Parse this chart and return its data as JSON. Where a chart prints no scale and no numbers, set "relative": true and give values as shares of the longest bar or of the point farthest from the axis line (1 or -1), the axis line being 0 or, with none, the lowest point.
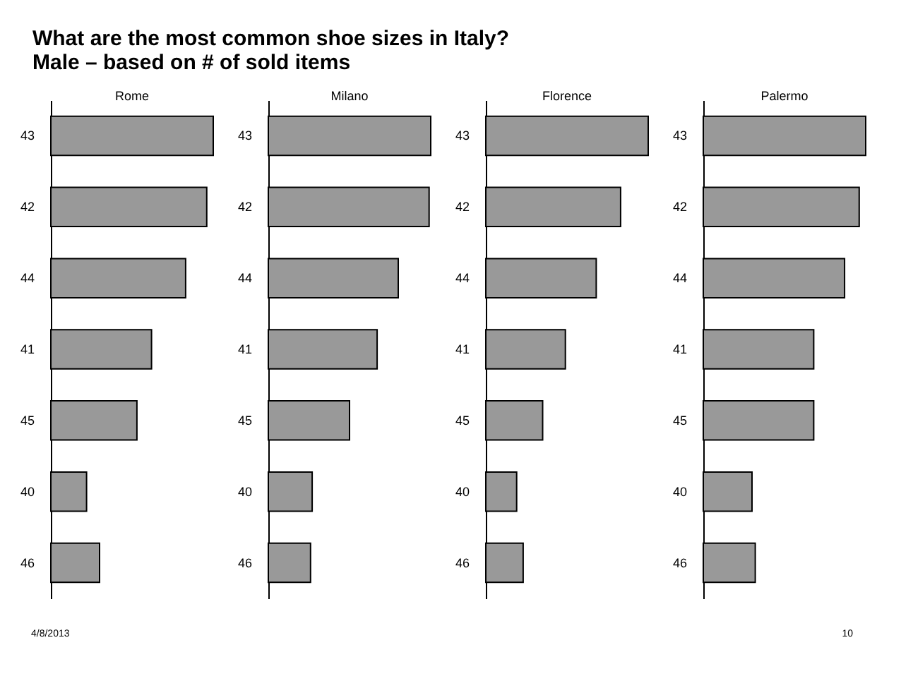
{
  "chart_data": [
    {
      "type": "other",
      "title": "What are the most common shoe sizes in Italy?",
      "subtitle": "Male – based on # of sold items",
      "annotations": [
        "4/8/2013",
        "10"
      ]
    },
    {
      "type": "bar",
      "title": "Rome",
      "orientation": "horizontal",
      "relative": true,
      "color": "#999999",
      "categories": [
        "43",
        "42",
        "44",
        "41",
        "45",
        "40",
        "46"
      ],
      "values": [
        1,
        0.96,
        0.83,
        0.62,
        0.53,
        0.22,
        0.3
      ]
    },
    {
      "type": "bar",
      "title": "Milano",
      "orientation": "horizontal",
      "relative": true,
      "color": "#999999",
      "categories": [
        "43",
        "42",
        "44",
        "41",
        "45",
        "40",
        "46"
      ],
      "values": [
        1,
        0.99,
        0.8,
        0.67,
        0.5,
        0.27,
        0.26
      ]
    },
    {
      "type": "bar",
      "title": "Florence",
      "orientation": "horizontal",
      "relative": true,
      "color": "#999999",
      "categories": [
        "43",
        "42",
        "44",
        "41",
        "45",
        "40",
        "46"
      ],
      "values": [
        1,
        0.83,
        0.68,
        0.49,
        0.35,
        0.19,
        0.23
      ]
    },
    {
      "type": "bar",
      "title": "Palermo",
      "orientation": "horizontal",
      "relative": true,
      "color": "#999999",
      "categories": [
        "43",
        "42",
        "44",
        "41",
        "45",
        "40",
        "46"
      ],
      "values": [
        1,
        0.96,
        0.87,
        0.68,
        0.68,
        0.3,
        0.32
      ]
    }
  ]
}
